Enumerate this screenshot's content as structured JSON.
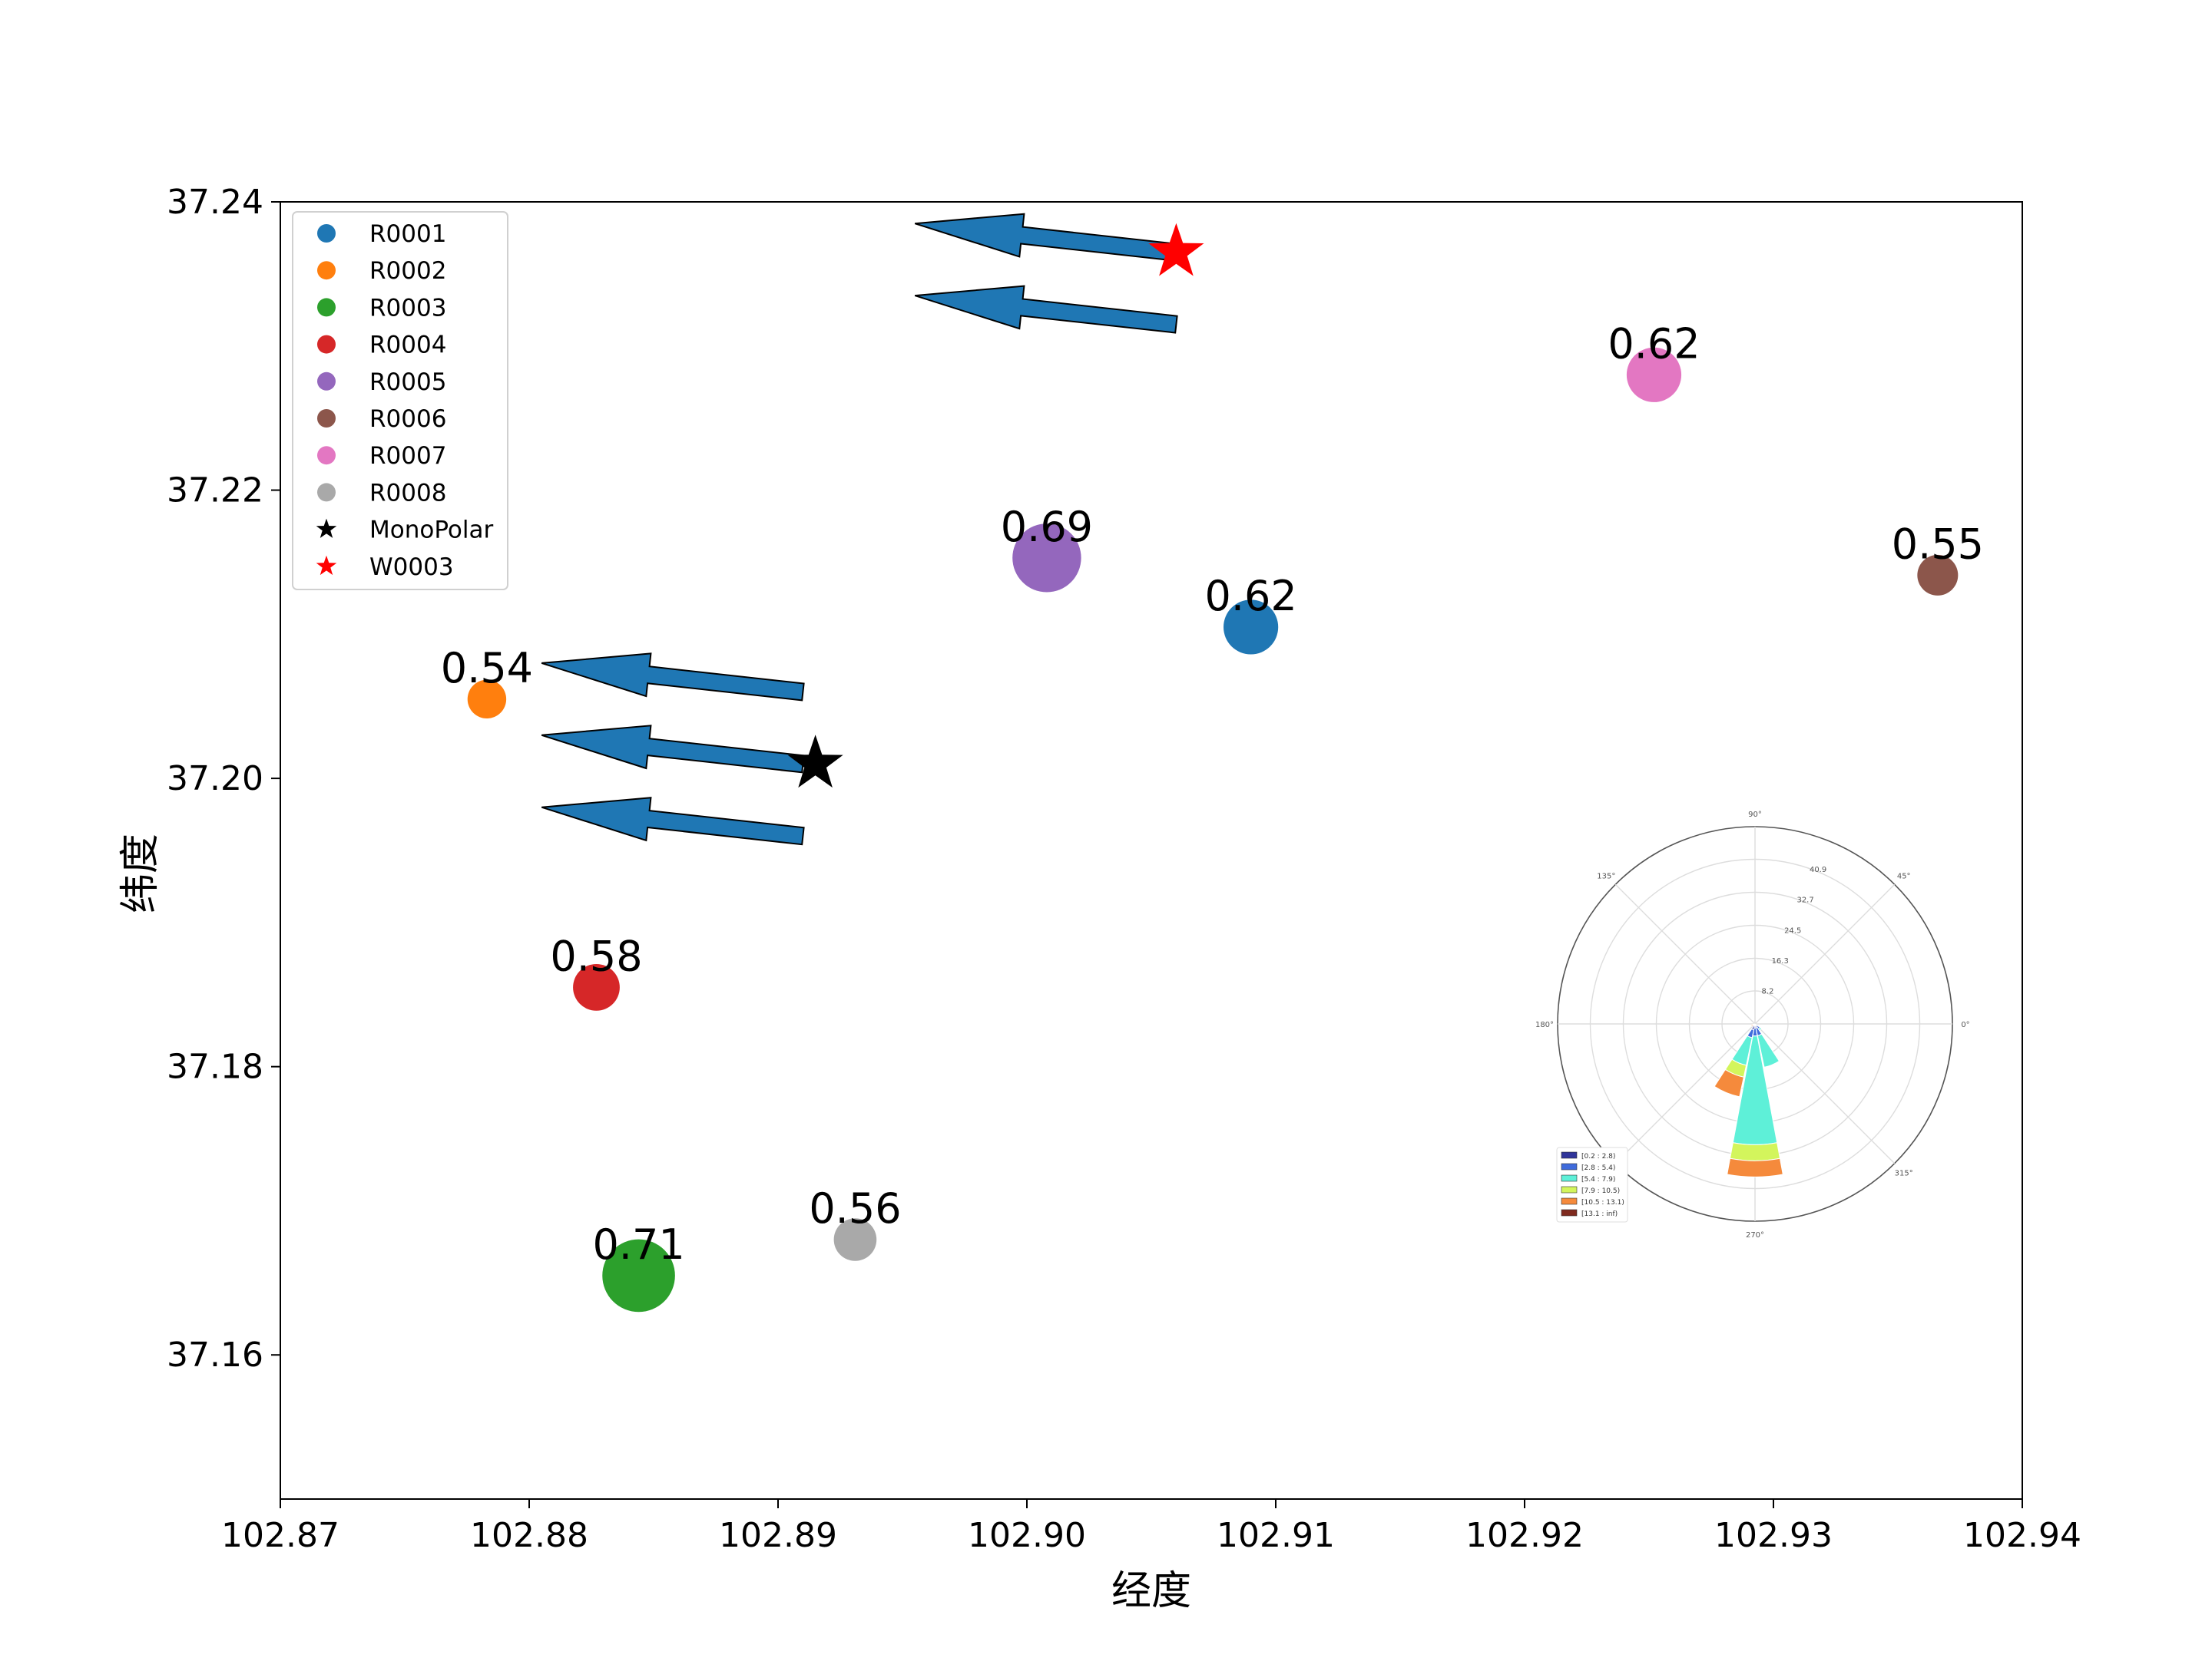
{
  "chart_data": [
    {
      "type": "scatter",
      "title": "",
      "xlabel": "经度",
      "ylabel": "纬度",
      "xlim": [
        102.87,
        102.94
      ],
      "ylim": [
        37.15,
        37.24
      ],
      "xticks": [
        "102.87",
        "102.88",
        "102.89",
        "102.90",
        "102.91",
        "102.92",
        "102.93",
        "102.94"
      ],
      "yticks": [
        "37.16",
        "37.18",
        "37.20",
        "37.22",
        "37.24"
      ],
      "grid": false,
      "legend_position": "top-left",
      "series": [
        {
          "name": "R0001",
          "color": "#1f77b4",
          "marker": "circle",
          "x": 102.909,
          "y": 37.2105,
          "value": 0.62,
          "label": "0.62"
        },
        {
          "name": "R0002",
          "color": "#ff7f0e",
          "marker": "circle",
          "x": 102.8783,
          "y": 37.2055,
          "value": 0.54,
          "label": "0.54"
        },
        {
          "name": "R0003",
          "color": "#2ca02c",
          "marker": "circle",
          "x": 102.8844,
          "y": 37.1655,
          "value": 0.71,
          "label": "0.71"
        },
        {
          "name": "R0004",
          "color": "#d62728",
          "marker": "circle",
          "x": 102.8827,
          "y": 37.1855,
          "value": 0.58,
          "label": "0.58"
        },
        {
          "name": "R0005",
          "color": "#9467bd",
          "marker": "circle",
          "x": 102.9008,
          "y": 37.2153,
          "value": 0.69,
          "label": "0.69"
        },
        {
          "name": "R0006",
          "color": "#8c564b",
          "marker": "circle",
          "x": 102.9366,
          "y": 37.2141,
          "value": 0.55,
          "label": "0.55"
        },
        {
          "name": "R0007",
          "color": "#e377c2",
          "marker": "circle",
          "x": 102.9252,
          "y": 37.228,
          "value": 0.62,
          "label": "0.62"
        },
        {
          "name": "R0008",
          "color": "#a9a9a9",
          "marker": "circle",
          "x": 102.8931,
          "y": 37.168,
          "value": 0.56,
          "label": "0.56"
        },
        {
          "name": "MonoPolar",
          "color": "#000000",
          "marker": "star",
          "x": 102.8915,
          "y": 37.201,
          "value": null,
          "label": ""
        },
        {
          "name": "W0003",
          "color": "#ff0000",
          "marker": "star",
          "x": 102.906,
          "y": 37.2365,
          "value": null,
          "label": ""
        }
      ],
      "arrows": [
        {
          "from": [
            102.906,
            37.2315
          ],
          "to": [
            102.8955,
            37.2335
          ],
          "color": "#1f77b4"
        },
        {
          "from": [
            102.906,
            37.2365
          ],
          "to": [
            102.8955,
            37.2385
          ],
          "color": "#1f77b4"
        },
        {
          "from": [
            102.891,
            37.206
          ],
          "to": [
            102.8805,
            37.208
          ],
          "color": "#1f77b4"
        },
        {
          "from": [
            102.891,
            37.201
          ],
          "to": [
            102.8805,
            37.203
          ],
          "color": "#1f77b4"
        },
        {
          "from": [
            102.891,
            37.196
          ],
          "to": [
            102.8805,
            37.198
          ],
          "color": "#1f77b4"
        }
      ]
    },
    {
      "type": "windrose",
      "title": "",
      "angle_labels": [
        "90°",
        "45°",
        "0°",
        "315°",
        "270°",
        "180°",
        "135°"
      ],
      "radial_labels": [
        "8.2",
        "16.3",
        "24.5",
        "32.7",
        "40.9"
      ],
      "radial_max": 49,
      "legend_position": "bottom-left",
      "bins": [
        {
          "label": "[0.2 : 2.8)",
          "color": "#30359a"
        },
        {
          "label": "[2.8 : 5.4)",
          "color": "#3f6bdc"
        },
        {
          "label": "[5.4 : 7.9)",
          "color": "#5ef0d8"
        },
        {
          "label": "[7.9 : 10.5)",
          "color": "#d3f55c"
        },
        {
          "label": "[10.5 : 13.1)",
          "color": "#f58a3c"
        },
        {
          "label": "[13.1 : inf)",
          "color": "#7f2a1e"
        }
      ],
      "sectors": [
        {
          "direction": 270,
          "values": [
            1.0,
            2.0,
            27.0,
            4.0,
            4.0,
            0
          ]
        },
        {
          "direction": 292.5,
          "values": [
            1.0,
            2.0,
            8.0,
            0,
            0,
            0
          ]
        },
        {
          "direction": 247.5,
          "values": [
            1.5,
            2.0,
            7.0,
            3.0,
            5.0,
            0
          ]
        },
        {
          "direction": 315,
          "values": [
            0.5,
            1.0,
            0.5,
            0,
            0,
            0
          ]
        },
        {
          "direction": 225,
          "values": [
            0.5,
            0,
            0,
            0,
            0,
            0
          ]
        },
        {
          "direction": 202.5,
          "values": [
            0,
            0,
            0,
            0,
            1.0,
            0
          ]
        }
      ]
    }
  ]
}
